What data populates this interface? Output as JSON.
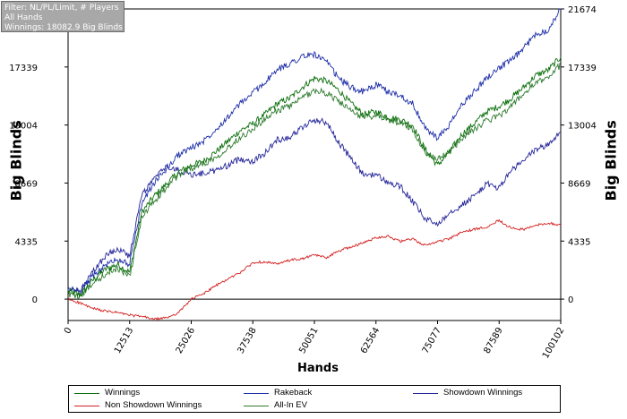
{
  "filter_box": {
    "line1": "Filter: NL/PL/Limit, # Players",
    "line2": "All Hands",
    "line3": "Winnings: 18082.9 Big Blinds"
  },
  "chart_data": {
    "type": "line",
    "xlabel": "Hands",
    "ylabel": "Big Blinds",
    "xlim": [
      0,
      100102
    ],
    "ylim": [
      -1600,
      21674
    ],
    "x_ticks": [
      0,
      12513,
      25026,
      37538,
      50051,
      62564,
      75077,
      87589,
      100102
    ],
    "y_ticks": [
      0,
      4335,
      8669,
      13004,
      17339,
      21674
    ],
    "grid": false,
    "legend_position": "bottom",
    "series": [
      {
        "name": "Winnings",
        "color": "#0a6e0a",
        "x": [
          0,
          2500,
          5000,
          7500,
          10000,
          12513,
          15000,
          17500,
          20000,
          22500,
          25026,
          27500,
          30000,
          32500,
          35000,
          37538,
          40000,
          42500,
          45000,
          47500,
          50051,
          52500,
          55000,
          57500,
          60000,
          62564,
          65000,
          67500,
          70000,
          72500,
          75077,
          77500,
          80000,
          82500,
          85000,
          87589,
          90000,
          92500,
          95000,
          97500,
          100102
        ],
        "y": [
          600,
          300,
          1400,
          2200,
          2600,
          2000,
          6500,
          7700,
          8600,
          9500,
          10000,
          10300,
          11000,
          11800,
          12600,
          13100,
          13800,
          14600,
          15000,
          15800,
          16500,
          16300,
          15600,
          14600,
          13800,
          14000,
          13600,
          13400,
          13000,
          11200,
          10000,
          11000,
          12300,
          13100,
          14000,
          14400,
          15000,
          15800,
          16700,
          17100,
          18083
        ]
      },
      {
        "name": "Non Showdown Winnings",
        "color": "#d42020",
        "x": [
          0,
          2500,
          5000,
          7500,
          10000,
          12513,
          15000,
          17500,
          20000,
          22500,
          25026,
          27500,
          30000,
          32500,
          35000,
          37538,
          40000,
          42500,
          45000,
          47500,
          50051,
          52500,
          55000,
          57500,
          60000,
          62564,
          65000,
          67500,
          70000,
          72500,
          75077,
          77500,
          80000,
          82500,
          85000,
          87589,
          90000,
          92500,
          95000,
          97500,
          100102
        ],
        "y": [
          0,
          -300,
          -700,
          -900,
          -1000,
          -1200,
          -1300,
          -1500,
          -1400,
          -1000,
          0,
          400,
          1000,
          1500,
          2000,
          2700,
          2800,
          2600,
          2900,
          3000,
          3300,
          3100,
          3600,
          3900,
          4200,
          4600,
          4700,
          4300,
          4500,
          4000,
          4300,
          4500,
          5000,
          5200,
          5400,
          5900,
          5300,
          5200,
          5500,
          5700,
          5500
        ]
      },
      {
        "name": "Rakeback",
        "color": "#1e2fa8",
        "x": [
          0,
          2500,
          5000,
          7500,
          10000,
          12513,
          15000,
          17500,
          20000,
          22500,
          25026,
          27500,
          30000,
          32500,
          35000,
          37538,
          40000,
          42500,
          45000,
          47500,
          50051,
          52500,
          55000,
          57500,
          60000,
          62564,
          65000,
          67500,
          70000,
          72500,
          75077,
          77500,
          80000,
          82500,
          85000,
          87589,
          90000,
          92500,
          95000,
          97500,
          100102
        ],
        "y": [
          800,
          600,
          1700,
          2500,
          3000,
          2600,
          7200,
          8700,
          9700,
          10800,
          11300,
          11800,
          12700,
          13600,
          14600,
          15400,
          16200,
          17100,
          17600,
          18100,
          18300,
          17700,
          16500,
          15800,
          15500,
          16000,
          15500,
          15200,
          14600,
          12800,
          12000,
          13000,
          14500,
          15500,
          16500,
          17300,
          17800,
          18700,
          19800,
          20100,
          21674
        ]
      },
      {
        "name": "Showdown Winnings",
        "color": "#24249a",
        "x": [
          0,
          2500,
          5000,
          7500,
          10000,
          12513,
          15000,
          17500,
          20000,
          22500,
          25026,
          27500,
          30000,
          32500,
          35000,
          37538,
          40000,
          42500,
          45000,
          47500,
          50051,
          52500,
          55000,
          57500,
          60000,
          62564,
          65000,
          67500,
          70000,
          72500,
          75077,
          77500,
          80000,
          82500,
          85000,
          87589,
          90000,
          92500,
          95000,
          97500,
          100102
        ],
        "y": [
          600,
          600,
          2000,
          3200,
          3800,
          3200,
          7800,
          9000,
          9900,
          9600,
          9300,
          9400,
          9600,
          10000,
          10500,
          10300,
          10900,
          11900,
          12100,
          12800,
          13400,
          13200,
          11700,
          10500,
          9300,
          9300,
          8700,
          8400,
          7300,
          6000,
          5600,
          6500,
          7000,
          7700,
          8600,
          8300,
          9600,
          10300,
          11200,
          11500,
          12500
        ]
      },
      {
        "name": "All-In EV",
        "color": "#2e7a2e",
        "x": [
          0,
          2500,
          5000,
          7500,
          10000,
          12513,
          15000,
          17500,
          20000,
          22500,
          25026,
          27500,
          30000,
          32500,
          35000,
          37538,
          40000,
          42500,
          45000,
          47500,
          50051,
          52500,
          55000,
          57500,
          60000,
          62564,
          65000,
          67500,
          70000,
          72500,
          75077,
          77500,
          80000,
          82500,
          85000,
          87589,
          90000,
          92500,
          95000,
          97500,
          100102
        ],
        "y": [
          400,
          200,
          1200,
          1800,
          2300,
          1700,
          6100,
          7300,
          8300,
          9300,
          9800,
          10100,
          10600,
          11300,
          12100,
          12700,
          13400,
          14100,
          14400,
          15000,
          15600,
          15400,
          14800,
          14000,
          13600,
          13700,
          13400,
          13200,
          12700,
          11000,
          10400,
          11000,
          12000,
          12700,
          13300,
          13700,
          14400,
          15300,
          16100,
          16600,
          17500
        ]
      }
    ]
  },
  "legend": {
    "items": [
      {
        "label": "Winnings",
        "color": "#0a6e0a"
      },
      {
        "label": "Rakeback",
        "color": "#1e2fa8"
      },
      {
        "label": "Showdown Winnings",
        "color": "#24249a"
      },
      {
        "label": "Non Showdown Winnings",
        "color": "#d42020"
      },
      {
        "label": "All-In EV",
        "color": "#2e7a2e"
      }
    ]
  }
}
